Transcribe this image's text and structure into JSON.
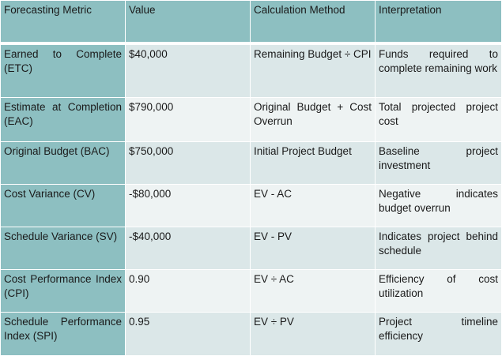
{
  "headers": [
    "Forecasting Metric",
    "Value",
    "Calculation Method",
    "Interpretation"
  ],
  "rows": [
    [
      "Earned to Complete (ETC)",
      "$40,000",
      "Remaining Budget ÷ CPI",
      "Funds required to complete remaining work"
    ],
    [
      "Estimate at Completion (EAC)",
      "$790,000",
      "Original Budget + Cost Overrun",
      "Total projected project cost"
    ],
    [
      "Original Budget (BAC)",
      "$750,000",
      "Initial Project Budget",
      "Baseline project investment"
    ],
    [
      "Cost Variance (CV)",
      "-$80,000",
      "EV - AC",
      "Negative indicates budget overrun"
    ],
    [
      "Schedule Variance (SV)",
      "-$40,000",
      "EV - PV",
      "Indicates project behind schedule"
    ],
    [
      "Cost Performance Index (CPI)",
      "0.90",
      "EV ÷ AC",
      "Efficiency of cost utilization"
    ],
    [
      "Schedule Performance Index (SPI)",
      "0.95",
      "EV ÷ PV",
      "Project timeline efficiency"
    ]
  ],
  "colors": {
    "header": "#8dbfc1",
    "cell_light": "#dbe7e8",
    "cell_lighter": "#eef3f3"
  }
}
